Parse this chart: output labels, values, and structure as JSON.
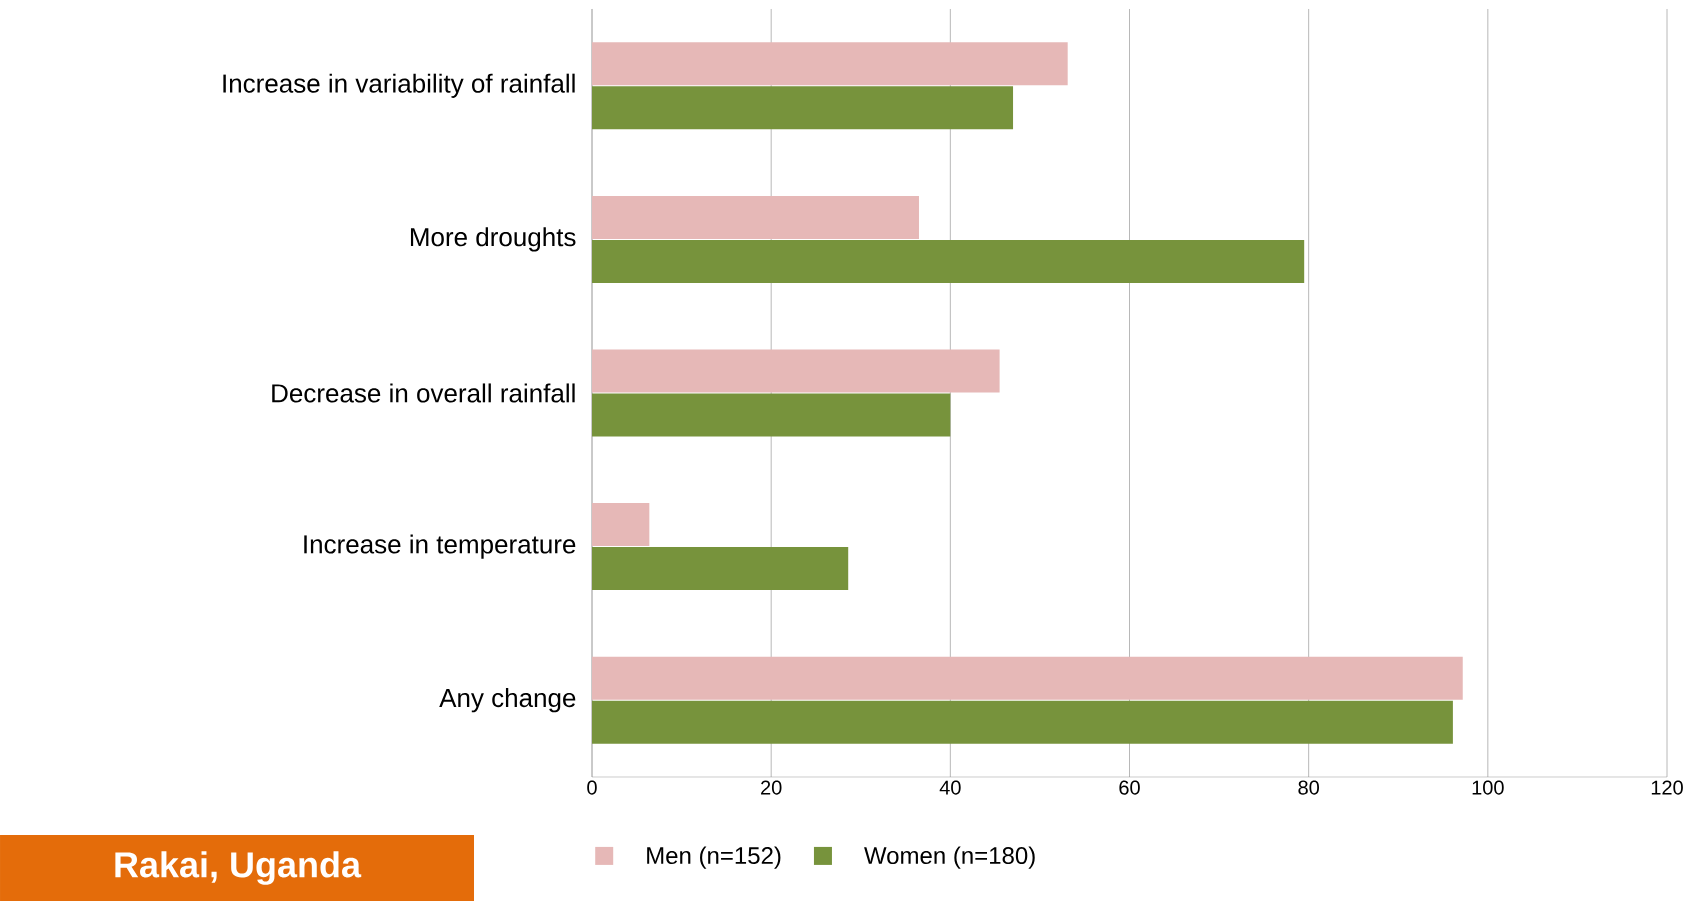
{
  "chart_data": {
    "type": "bar",
    "orientation": "horizontal",
    "categories": [
      "Increase in variability of rainfall",
      "More droughts",
      "Decrease in overall rainfall",
      "Increase in temperature",
      "Any change"
    ],
    "series": [
      {
        "name": "Men  (n=152)",
        "color": "#e6b8b7",
        "values": [
          53.1,
          36.5,
          45.5,
          6.4,
          97.2
        ]
      },
      {
        "name": "Women (n=180)",
        "color": "#77933c",
        "values": [
          47.0,
          79.5,
          40.0,
          28.6,
          96.1
        ]
      }
    ],
    "xlim": [
      0,
      120
    ],
    "xticks": [
      0,
      20,
      40,
      60,
      80,
      100,
      120
    ],
    "grid": "x",
    "legend": "bottom",
    "annotations": [
      "Rakai, Uganda"
    ]
  }
}
